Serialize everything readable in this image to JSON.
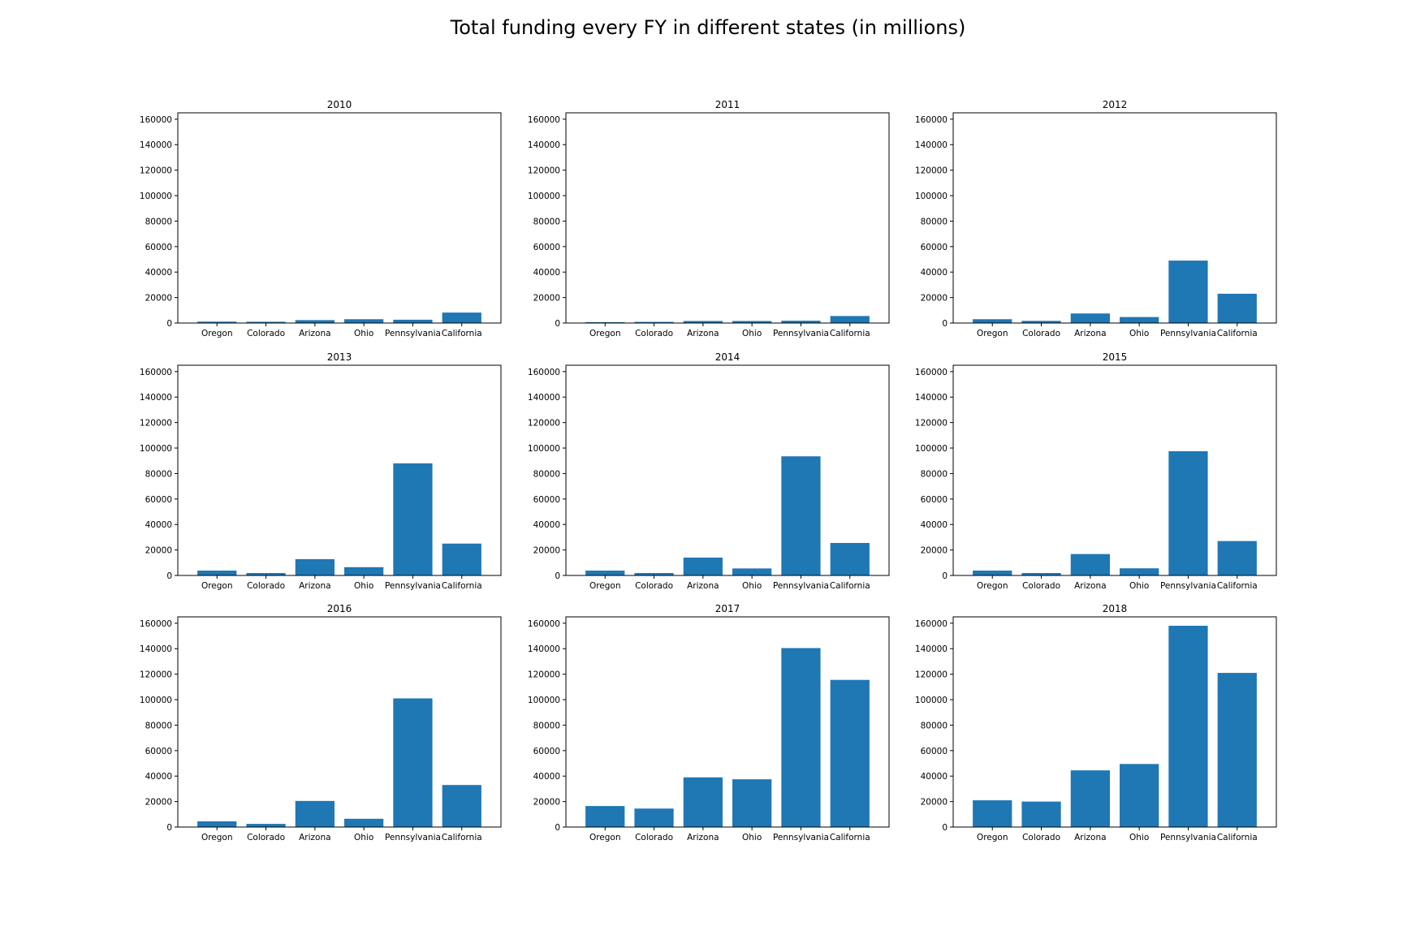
{
  "figure": {
    "title": "Total funding every FY in different states (in millions)"
  },
  "colors": {
    "bar": "#1f77b4",
    "axis": "#000000",
    "background": "#ffffff"
  },
  "chart_data": [
    {
      "type": "bar",
      "title": "2010",
      "categories": [
        "Oregon",
        "Colorado",
        "Arizona",
        "Ohio",
        "Pennsylvania",
        "California"
      ],
      "values": [
        1100,
        1000,
        2300,
        3000,
        2600,
        8200
      ],
      "ylim": [
        0,
        165000
      ],
      "yticks": [
        0,
        20000,
        40000,
        60000,
        80000,
        100000,
        120000,
        140000,
        160000
      ],
      "xlabel": "",
      "ylabel": "",
      "grid": false
    },
    {
      "type": "bar",
      "title": "2011",
      "categories": [
        "Oregon",
        "Colorado",
        "Arizona",
        "Ohio",
        "Pennsylvania",
        "California"
      ],
      "values": [
        700,
        900,
        1600,
        1600,
        1800,
        5500
      ],
      "ylim": [
        0,
        165000
      ],
      "yticks": [
        0,
        20000,
        40000,
        60000,
        80000,
        100000,
        120000,
        140000,
        160000
      ],
      "xlabel": "",
      "ylabel": "",
      "grid": false
    },
    {
      "type": "bar",
      "title": "2012",
      "categories": [
        "Oregon",
        "Colorado",
        "Arizona",
        "Ohio",
        "Pennsylvania",
        "California"
      ],
      "values": [
        3000,
        1700,
        7500,
        4700,
        49000,
        23000
      ],
      "ylim": [
        0,
        165000
      ],
      "yticks": [
        0,
        20000,
        40000,
        60000,
        80000,
        100000,
        120000,
        140000,
        160000
      ],
      "xlabel": "",
      "ylabel": "",
      "grid": false
    },
    {
      "type": "bar",
      "title": "2013",
      "categories": [
        "Oregon",
        "Colorado",
        "Arizona",
        "Ohio",
        "Pennsylvania",
        "California"
      ],
      "values": [
        3800,
        1900,
        12800,
        6500,
        88000,
        25000
      ],
      "ylim": [
        0,
        165000
      ],
      "yticks": [
        0,
        20000,
        40000,
        60000,
        80000,
        100000,
        120000,
        140000,
        160000
      ],
      "xlabel": "",
      "ylabel": "",
      "grid": false
    },
    {
      "type": "bar",
      "title": "2014",
      "categories": [
        "Oregon",
        "Colorado",
        "Arizona",
        "Ohio",
        "Pennsylvania",
        "California"
      ],
      "values": [
        3800,
        1900,
        14000,
        5500,
        93500,
        25500
      ],
      "ylim": [
        0,
        165000
      ],
      "yticks": [
        0,
        20000,
        40000,
        60000,
        80000,
        100000,
        120000,
        140000,
        160000
      ],
      "xlabel": "",
      "ylabel": "",
      "grid": false
    },
    {
      "type": "bar",
      "title": "2015",
      "categories": [
        "Oregon",
        "Colorado",
        "Arizona",
        "Ohio",
        "Pennsylvania",
        "California"
      ],
      "values": [
        3800,
        1900,
        16800,
        5600,
        97500,
        27000
      ],
      "ylim": [
        0,
        165000
      ],
      "yticks": [
        0,
        20000,
        40000,
        60000,
        80000,
        100000,
        120000,
        140000,
        160000
      ],
      "xlabel": "",
      "ylabel": "",
      "grid": false
    },
    {
      "type": "bar",
      "title": "2016",
      "categories": [
        "Oregon",
        "Colorado",
        "Arizona",
        "Ohio",
        "Pennsylvania",
        "California"
      ],
      "values": [
        4500,
        2500,
        20500,
        6500,
        101000,
        33000
      ],
      "ylim": [
        0,
        165000
      ],
      "yticks": [
        0,
        20000,
        40000,
        60000,
        80000,
        100000,
        120000,
        140000,
        160000
      ],
      "xlabel": "",
      "ylabel": "",
      "grid": false
    },
    {
      "type": "bar",
      "title": "2017",
      "categories": [
        "Oregon",
        "Colorado",
        "Arizona",
        "Ohio",
        "Pennsylvania",
        "California"
      ],
      "values": [
        16500,
        14500,
        39000,
        37500,
        140500,
        115500
      ],
      "ylim": [
        0,
        165000
      ],
      "yticks": [
        0,
        20000,
        40000,
        60000,
        80000,
        100000,
        120000,
        140000,
        160000
      ],
      "xlabel": "",
      "ylabel": "",
      "grid": false
    },
    {
      "type": "bar",
      "title": "2018",
      "categories": [
        "Oregon",
        "Colorado",
        "Arizona",
        "Ohio",
        "Pennsylvania",
        "California"
      ],
      "values": [
        21000,
        20000,
        44500,
        49500,
        158000,
        121000
      ],
      "ylim": [
        0,
        165000
      ],
      "yticks": [
        0,
        20000,
        40000,
        60000,
        80000,
        100000,
        120000,
        140000,
        160000
      ],
      "xlabel": "",
      "ylabel": "",
      "grid": false
    }
  ]
}
